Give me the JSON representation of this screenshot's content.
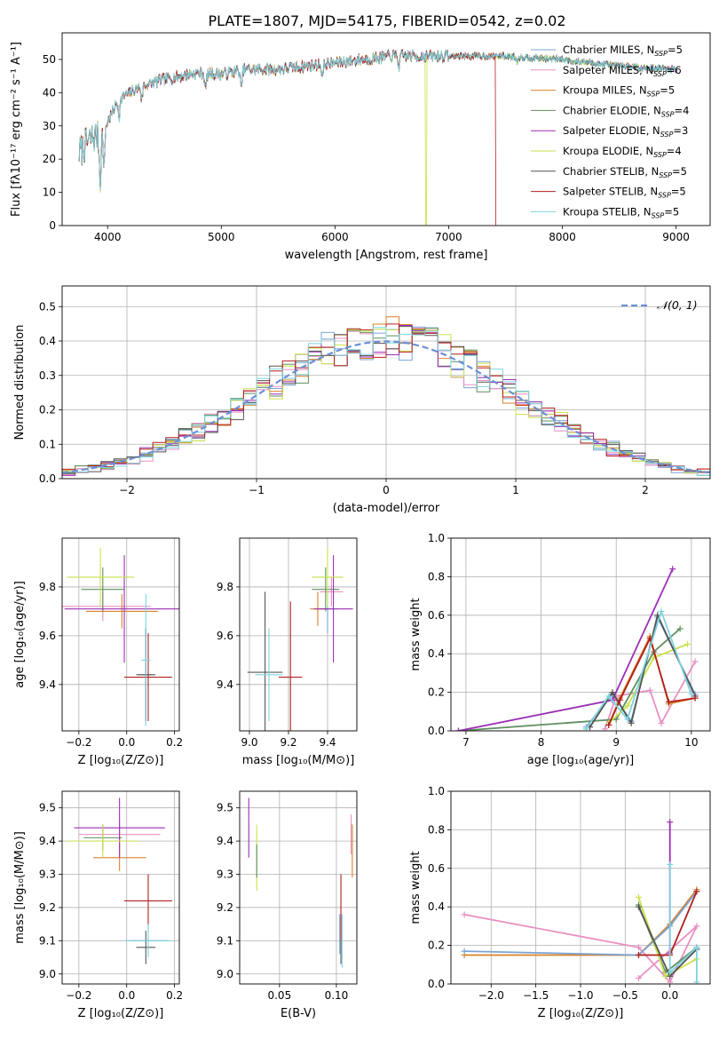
{
  "title": "PLATE=1807, MJD=54175, FIBERID=0542, z=0.02",
  "colors": {
    "Chabrier MILES": "#7aa4d6",
    "Salpeter MILES": "#e98fc2",
    "Kroupa MILES": "#d9822b",
    "Chabrier ELODIE": "#5f8f5f",
    "Salpeter ELODIE": "#9b2fb5",
    "Kroupa ELODIE": "#c9e24a",
    "Chabrier STELIB": "#555555",
    "Salpeter STELIB": "#b21f1f",
    "Kroupa STELIB": "#7fd3de",
    "normal": "#6a8fd8",
    "grid": "#b0b0b0"
  },
  "chart_data": [
    {
      "id": "spectrum",
      "type": "line",
      "xlabel": "wavelength [Angstrom, rest frame]",
      "ylabel": "Flux [fλ10⁻¹⁷ erg cm⁻² s⁻¹ A⁻¹]",
      "xlim": [
        3600,
        9300
      ],
      "ylim": [
        0,
        58
      ],
      "xticks": [
        4000,
        5000,
        6000,
        7000,
        8000,
        9000
      ],
      "yticks": [
        0,
        10,
        20,
        30,
        40,
        50
      ],
      "legend": "right",
      "legend_entries": [
        {
          "model": "Chabrier MILES",
          "label": "Chabrier MILES, N",
          "sub": "SSP",
          "n": "=5"
        },
        {
          "model": "Salpeter MILES",
          "label": "Salpeter MILES, N",
          "sub": "SSP",
          "n": "=6"
        },
        {
          "model": "Kroupa MILES",
          "label": "Kroupa MILES, N",
          "sub": "SSP",
          "n": "=5"
        },
        {
          "model": "Chabrier ELODIE",
          "label": "Chabrier ELODIE, N",
          "sub": "SSP",
          "n": "=4"
        },
        {
          "model": "Salpeter ELODIE",
          "label": "Salpeter ELODIE, N",
          "sub": "SSP",
          "n": "=3"
        },
        {
          "model": "Kroupa ELODIE",
          "label": "Kroupa ELODIE, N",
          "sub": "SSP",
          "n": "=4"
        },
        {
          "model": "Chabrier STELIB",
          "label": "Chabrier STELIB, N",
          "sub": "SSP",
          "n": "=5"
        },
        {
          "model": "Salpeter STELIB",
          "label": "Salpeter STELIB, N",
          "sub": "SSP",
          "n": "=5"
        },
        {
          "model": "Kroupa STELIB",
          "label": "Kroupa STELIB, N",
          "sub": "SSP",
          "n": "=5"
        }
      ],
      "continuum": {
        "x": [
          3750,
          3850,
          3950,
          4100,
          4300,
          4500,
          4800,
          5000,
          5200,
          5500,
          6000,
          6500,
          7000,
          7500,
          8000,
          8500,
          9000
        ],
        "y": [
          22,
          26,
          28,
          38,
          42,
          44,
          46,
          45.5,
          47,
          47,
          49,
          51,
          51,
          51,
          50,
          48,
          47
        ]
      },
      "cutoffs": [
        {
          "model": "Kroupa ELODIE",
          "x": 3920
        },
        {
          "model": "Kroupa ELODIE",
          "x": 6800
        },
        {
          "model": "Salpeter STELIB",
          "x": 7420
        }
      ]
    },
    {
      "id": "residuals",
      "type": "histogram",
      "xlabel": "(data-model)/error",
      "ylabel": "Normed distribution",
      "xlim": [
        -2.5,
        2.5
      ],
      "ylim": [
        0,
        0.56
      ],
      "xticks": [
        -2,
        -1,
        0,
        1,
        2
      ],
      "yticks": [
        0.0,
        0.1,
        0.2,
        0.3,
        0.4,
        0.5
      ],
      "bin_width": 0.1,
      "legend_label": "𝒩(0, 1)",
      "legend": "top-right",
      "reference": "standard normal"
    },
    {
      "id": "age-vs-Z",
      "type": "errorbar",
      "xlabel": "Z [log₁₀(Z/Z⊙)]",
      "ylabel": "age  [log₁₀(age/yr)]",
      "xlim": [
        -0.27,
        0.22
      ],
      "ylim": [
        9.21,
        10.0
      ],
      "xticks": [
        -0.2,
        0.0,
        0.2
      ],
      "yticks": [
        9.4,
        9.6,
        9.8
      ],
      "points": [
        {
          "model": "Chabrier MILES",
          "x": 0.08,
          "y": 9.44,
          "xerr": 0.03,
          "yerr": 0.19
        },
        {
          "model": "Salpeter MILES",
          "x": -0.1,
          "y": 9.72,
          "xerr": 0.2,
          "yerr": 0.06
        },
        {
          "model": "Kroupa MILES",
          "x": -0.02,
          "y": 9.7,
          "xerr": 0.15,
          "yerr": 0.07
        },
        {
          "model": "Chabrier ELODIE",
          "x": -0.1,
          "y": 9.79,
          "xerr": 0.09,
          "yerr": 0.09
        },
        {
          "model": "Salpeter ELODIE",
          "x": -0.01,
          "y": 9.71,
          "xerr": 0.25,
          "yerr": 0.22
        },
        {
          "model": "Kroupa ELODIE",
          "x": -0.11,
          "y": 9.84,
          "xerr": 0.14,
          "yerr": 0.12
        },
        {
          "model": "Chabrier STELIB",
          "x": 0.08,
          "y": 9.44,
          "xerr": 0.04,
          "yerr": 0.19
        },
        {
          "model": "Salpeter STELIB",
          "x": 0.09,
          "y": 9.43,
          "xerr": 0.1,
          "yerr": 0.18
        },
        {
          "model": "Kroupa STELIB",
          "x": 0.08,
          "y": 9.5,
          "xerr": 0.02,
          "yerr": 0.27
        }
      ]
    },
    {
      "id": "age-vs-mass",
      "type": "errorbar",
      "xlabel": "mass [log₁₀(M/M⊙)]",
      "ylabel": "",
      "xlim": [
        8.95,
        9.55
      ],
      "ylim": [
        9.21,
        10.0
      ],
      "xticks": [
        9.0,
        9.2,
        9.4
      ],
      "yticks": [
        9.4,
        9.6,
        9.8
      ],
      "points": [
        {
          "model": "Chabrier MILES",
          "x": 9.4,
          "y": 9.71,
          "xerr": 0.05,
          "yerr": 0.1
        },
        {
          "model": "Salpeter MILES",
          "x": 9.42,
          "y": 9.78,
          "xerr": 0.06,
          "yerr": 0.06
        },
        {
          "model": "Kroupa MILES",
          "x": 9.35,
          "y": 9.71,
          "xerr": 0.04,
          "yerr": 0.07
        },
        {
          "model": "Chabrier ELODIE",
          "x": 9.39,
          "y": 9.79,
          "xerr": 0.07,
          "yerr": 0.09
        },
        {
          "model": "Salpeter ELODIE",
          "x": 9.43,
          "y": 9.71,
          "xerr": 0.1,
          "yerr": 0.22
        },
        {
          "model": "Kroupa ELODIE",
          "x": 9.4,
          "y": 9.84,
          "xerr": 0.08,
          "yerr": 0.12
        },
        {
          "model": "Chabrier STELIB",
          "x": 9.08,
          "y": 9.45,
          "xerr": 0.09,
          "yerr": 0.33
        },
        {
          "model": "Salpeter STELIB",
          "x": 9.21,
          "y": 9.43,
          "xerr": 0.06,
          "yerr": 0.31
        },
        {
          "model": "Kroupa STELIB",
          "x": 9.1,
          "y": 9.44,
          "xerr": 0.07,
          "yerr": 0.19
        }
      ]
    },
    {
      "id": "mass-weight-vs-age",
      "type": "line",
      "xlabel": "age  [log₁₀(age/yr)]",
      "ylabel": "mass weight",
      "xlim": [
        6.8,
        10.25
      ],
      "ylim": [
        0.0,
        1.0
      ],
      "xticks": [
        7,
        8,
        9,
        10
      ],
      "yticks": [
        0.0,
        0.2,
        0.4,
        0.6,
        0.8,
        1.0
      ],
      "series": [
        {
          "model": "Chabrier MILES",
          "x": [
            8.6,
            8.95,
            9.2,
            9.55,
            10.05
          ],
          "y": [
            0.02,
            0.19,
            0.05,
            0.59,
            0.19
          ]
        },
        {
          "model": "Salpeter MILES",
          "x": [
            8.85,
            9.0,
            9.45,
            9.6,
            10.05
          ],
          "y": [
            0.01,
            0.18,
            0.21,
            0.04,
            0.36
          ]
        },
        {
          "model": "Kroupa MILES",
          "x": [
            8.9,
            9.05,
            9.45,
            9.7,
            10.05
          ],
          "y": [
            0.03,
            0.17,
            0.49,
            0.14,
            0.17
          ]
        },
        {
          "model": "Chabrier ELODIE",
          "x": [
            6.9,
            9.0,
            9.5,
            9.85
          ],
          "y": [
            0.0,
            0.06,
            0.41,
            0.53
          ]
        },
        {
          "model": "Salpeter ELODIE",
          "x": [
            6.9,
            8.95,
            9.75
          ],
          "y": [
            0.0,
            0.16,
            0.84
          ]
        },
        {
          "model": "Kroupa ELODIE",
          "x": [
            8.9,
            9.15,
            9.5,
            9.95
          ],
          "y": [
            0.04,
            0.13,
            0.38,
            0.45
          ]
        },
        {
          "model": "Chabrier STELIB",
          "x": [
            8.65,
            8.95,
            9.2,
            9.55,
            10.05
          ],
          "y": [
            0.02,
            0.2,
            0.04,
            0.6,
            0.18
          ]
        },
        {
          "model": "Salpeter STELIB",
          "x": [
            8.9,
            9.05,
            9.45,
            9.7,
            10.05
          ],
          "y": [
            0.03,
            0.16,
            0.48,
            0.15,
            0.17
          ]
        },
        {
          "model": "Kroupa STELIB",
          "x": [
            8.6,
            8.9,
            9.15,
            9.6,
            10.0
          ],
          "y": [
            0.01,
            0.18,
            0.06,
            0.62,
            0.19
          ]
        }
      ]
    },
    {
      "id": "mass-vs-Z",
      "type": "errorbar",
      "xlabel": "Z [log₁₀(Z/Z⊙)]",
      "ylabel": "mass [log₁₀(M/M⊙)]",
      "xlim": [
        -0.27,
        0.22
      ],
      "ylim": [
        8.97,
        9.55
      ],
      "xticks": [
        -0.2,
        0.0,
        0.2
      ],
      "yticks": [
        9.0,
        9.1,
        9.2,
        9.3,
        9.4,
        9.5
      ],
      "points": [
        {
          "model": "Chabrier MILES",
          "x": 0.09,
          "y": 9.1,
          "xerr": 0.08,
          "yerr": 0.04
        },
        {
          "model": "Salpeter MILES",
          "x": -0.03,
          "y": 9.42,
          "xerr": 0.17,
          "yerr": 0.04
        },
        {
          "model": "Kroupa MILES",
          "x": -0.03,
          "y": 9.35,
          "xerr": 0.11,
          "yerr": 0.04
        },
        {
          "model": "Chabrier ELODIE",
          "x": -0.1,
          "y": 9.41,
          "xerr": 0.08,
          "yerr": 0.04
        },
        {
          "model": "Salpeter ELODIE",
          "x": -0.03,
          "y": 9.44,
          "xerr": 0.19,
          "yerr": 0.09
        },
        {
          "model": "Kroupa ELODIE",
          "x": -0.1,
          "y": 9.4,
          "xerr": 0.15,
          "yerr": 0.05
        },
        {
          "model": "Chabrier STELIB",
          "x": 0.08,
          "y": 9.08,
          "xerr": 0.04,
          "yerr": 0.05
        },
        {
          "model": "Salpeter STELIB",
          "x": 0.09,
          "y": 9.22,
          "xerr": 0.1,
          "yerr": 0.08
        },
        {
          "model": "Kroupa STELIB",
          "x": 0.09,
          "y": 9.1,
          "xerr": 0.1,
          "yerr": 0.05
        }
      ]
    },
    {
      "id": "mass-vs-EBV",
      "type": "errorbar",
      "xlabel": "E(B-V)",
      "ylabel": "",
      "xlim": [
        0.015,
        0.118
      ],
      "ylim": [
        8.97,
        9.55
      ],
      "xticks": [
        0.05,
        0.1
      ],
      "yticks": [
        9.0,
        9.1,
        9.2,
        9.3,
        9.4,
        9.5
      ],
      "points": [
        {
          "model": "Salpeter ELODIE",
          "x": 0.023,
          "y": 9.44,
          "xerr": 0,
          "yerr": 0.09
        },
        {
          "model": "Kroupa ELODIE",
          "x": 0.03,
          "y": 9.35,
          "xerr": 0,
          "yerr": 0.1
        },
        {
          "model": "Chabrier ELODIE",
          "x": 0.03,
          "y": 9.34,
          "xerr": 0,
          "yerr": 0.05
        },
        {
          "model": "Chabrier STELIB",
          "x": 0.104,
          "y": 9.1,
          "xerr": 0,
          "yerr": 0.07
        },
        {
          "model": "Salpeter STELIB",
          "x": 0.104,
          "y": 9.2,
          "xerr": 0,
          "yerr": 0.1
        },
        {
          "model": "Kroupa STELIB",
          "x": 0.105,
          "y": 9.1,
          "xerr": 0,
          "yerr": 0.08
        },
        {
          "model": "Chabrier MILES",
          "x": 0.103,
          "y": 9.12,
          "xerr": 0,
          "yerr": 0.06
        },
        {
          "model": "Salpeter MILES",
          "x": 0.113,
          "y": 9.42,
          "xerr": 0,
          "yerr": 0.06
        },
        {
          "model": "Kroupa MILES",
          "x": 0.114,
          "y": 9.37,
          "xerr": 0,
          "yerr": 0.08
        }
      ]
    },
    {
      "id": "mass-weight-vs-Z",
      "type": "line",
      "xlabel": "Z [log₁₀(Z/Z⊙)]",
      "ylabel": "mass weight",
      "xlim": [
        -2.45,
        0.45
      ],
      "ylim": [
        0.0,
        1.0
      ],
      "xticks": [
        -2.0,
        -1.5,
        -1.0,
        -0.5,
        0.0
      ],
      "yticks": [
        0.0,
        0.2,
        0.4,
        0.6,
        0.8,
        1.0
      ],
      "series": [
        {
          "model": "Salpeter MILES",
          "x": [
            -2.3,
            -0.35,
            0.0,
            0.3,
            -0.35
          ],
          "y": [
            0.36,
            0.19,
            0.01,
            0.3,
            0.03
          ]
        },
        {
          "model": "Kroupa MILES",
          "x": [
            -2.3,
            -0.35,
            0.0,
            0.3
          ],
          "y": [
            0.15,
            0.15,
            0.31,
            0.49
          ]
        },
        {
          "model": "Chabrier MILES",
          "x": [
            -2.3,
            -0.35,
            0.0,
            0.3
          ],
          "y": [
            0.17,
            0.15,
            0.3,
            0.48
          ]
        },
        {
          "model": "Chabrier ELODIE",
          "x": [
            -0.35,
            -0.05,
            0.3
          ],
          "y": [
            0.41,
            0.06,
            0.19
          ]
        },
        {
          "model": "Salpeter ELODIE",
          "x": [
            0.0,
            0.0
          ],
          "y": [
            0.84,
            0.16
          ]
        },
        {
          "model": "Kroupa ELODIE",
          "x": [
            -0.35,
            -0.05,
            0.3
          ],
          "y": [
            0.45,
            0.04,
            0.13
          ]
        },
        {
          "model": "Chabrier STELIB",
          "x": [
            -0.35,
            0.0,
            0.3
          ],
          "y": [
            0.4,
            0.04,
            0.18
          ]
        },
        {
          "model": "Salpeter STELIB",
          "x": [
            -0.35,
            0.0,
            0.3
          ],
          "y": [
            0.15,
            0.15,
            0.48
          ]
        },
        {
          "model": "Kroupa STELIB",
          "x": [
            0.0,
            0.0,
            0.3,
            0.3
          ],
          "y": [
            0.62,
            0.06,
            0.19,
            0.01
          ]
        }
      ]
    }
  ]
}
